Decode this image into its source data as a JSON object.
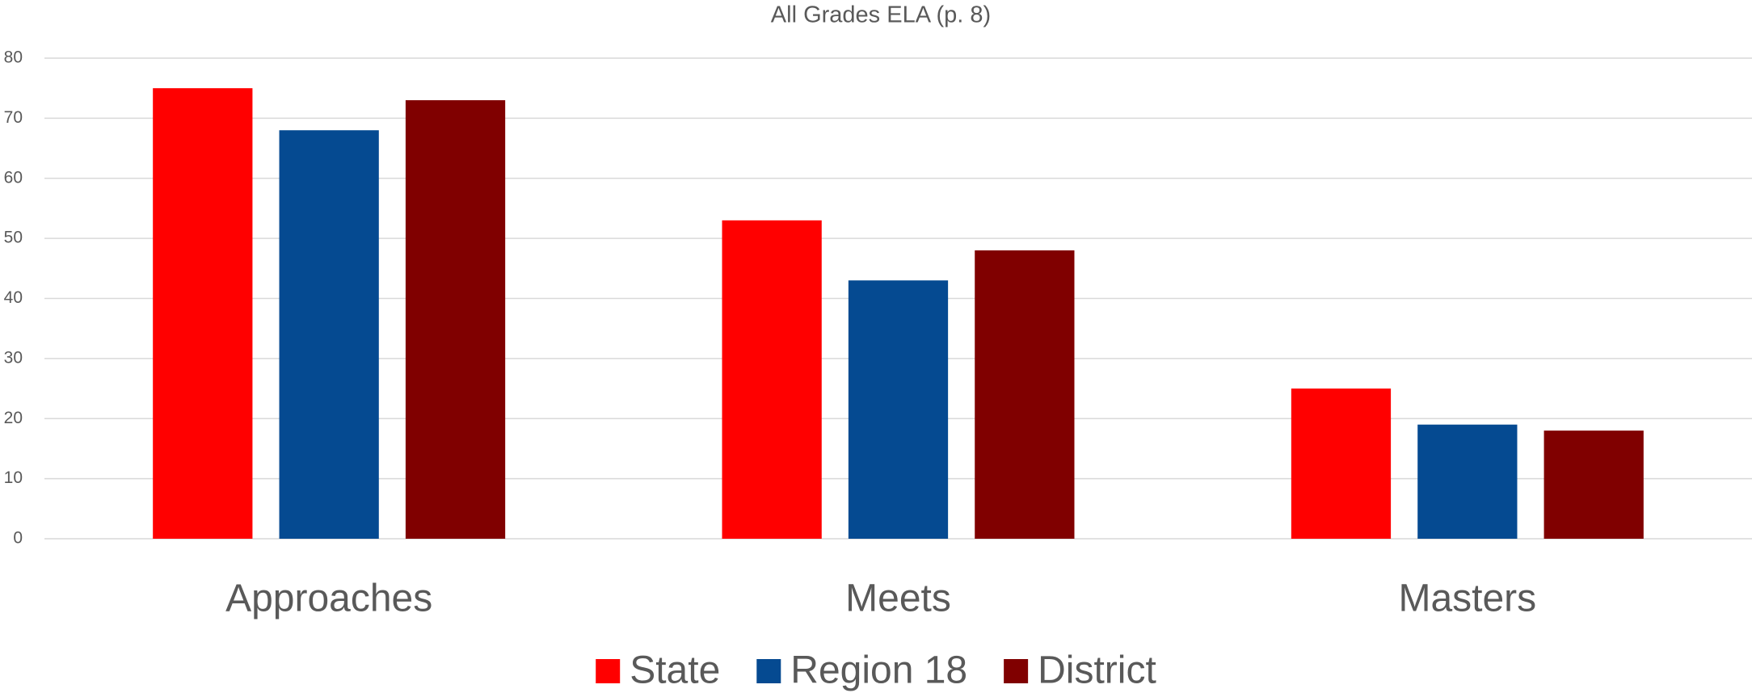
{
  "chart_data": {
    "type": "bar",
    "title": "All Grades ELA (p. 8)",
    "categories": [
      "Approaches",
      "Meets",
      "Masters"
    ],
    "series": [
      {
        "name": "State",
        "color": "#ff0000",
        "values": [
          75,
          53,
          25
        ]
      },
      {
        "name": "Region 18",
        "color": "#054a91",
        "values": [
          68,
          43,
          19
        ]
      },
      {
        "name": "District",
        "color": "#800000",
        "values": [
          73,
          48,
          18
        ]
      }
    ],
    "ylim": [
      0,
      80
    ],
    "yticks": [
      0,
      10,
      20,
      30,
      40,
      50,
      60,
      70,
      80
    ],
    "grid": true,
    "legend": "bottom"
  }
}
